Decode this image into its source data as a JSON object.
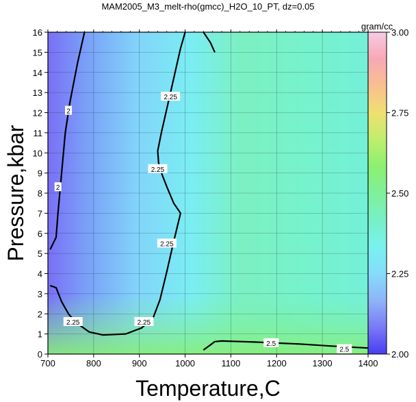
{
  "chart_data": {
    "type": "heatmap",
    "title": "MAM2005_M3_melt-rho(gmcc)_H2O_10_PT, dz=0.05",
    "xlabel": "Temperature,C",
    "ylabel": "Pressure,kbar",
    "xlim": [
      700,
      1400
    ],
    "ylim": [
      0,
      16
    ],
    "x_ticks": [
      700,
      800,
      900,
      1000,
      1100,
      1200,
      1300,
      1400
    ],
    "y_ticks": [
      0,
      1,
      2,
      3,
      4,
      5,
      6,
      7,
      8,
      9,
      10,
      11,
      12,
      13,
      14,
      15,
      16
    ],
    "grid": true,
    "colorbar": {
      "unit_label": "gram/cc",
      "min": 2.0,
      "max": 3.0,
      "ticks": [
        "2.00",
        "2.25",
        "2.50",
        "2.75",
        "3.00"
      ],
      "colors": [
        "#4a3cf0",
        "#7a7af6",
        "#8fb4f8",
        "#86dcfa",
        "#78f2ee",
        "#77f0c6",
        "#7ff09a",
        "#8df070",
        "#bfee6e",
        "#f0e070",
        "#f8c090",
        "#f8a8b4",
        "#f6cbe6"
      ]
    },
    "contour_lines": [
      {
        "level": "2",
        "points": [
          [
            705,
            5.2
          ],
          [
            718,
            5.8
          ],
          [
            722,
            7
          ],
          [
            728,
            8.5
          ],
          [
            738,
            11
          ],
          [
            748,
            12.5
          ],
          [
            765,
            14.5
          ],
          [
            780,
            16
          ]
        ]
      },
      {
        "level": "2.25",
        "points": [
          [
            705,
            3.4
          ],
          [
            718,
            3.3
          ],
          [
            730,
            2.6
          ],
          [
            745,
            2.0
          ],
          [
            760,
            1.6
          ],
          [
            790,
            1.1
          ],
          [
            820,
            0.95
          ],
          [
            870,
            1.0
          ],
          [
            905,
            1.3
          ],
          [
            930,
            1.8
          ],
          [
            945,
            2.7
          ],
          [
            960,
            4.1
          ],
          [
            975,
            5.6
          ],
          [
            990,
            7.0
          ],
          [
            975,
            7.5
          ],
          [
            962,
            8.2
          ],
          [
            950,
            8.9
          ],
          [
            942,
            9.5
          ],
          [
            940,
            10.1
          ],
          [
            948,
            11.0
          ],
          [
            958,
            12.0
          ],
          [
            968,
            13.0
          ],
          [
            980,
            14.2
          ],
          [
            990,
            15.2
          ],
          [
            1000,
            16
          ]
        ]
      },
      {
        "level": "2.25",
        "points": [
          [
            1040,
            16
          ],
          [
            1055,
            15.5
          ],
          [
            1065,
            15
          ]
        ]
      },
      {
        "level": "2.5",
        "points": [
          [
            1040,
            0.2
          ],
          [
            1055,
            0.45
          ],
          [
            1065,
            0.62
          ],
          [
            1080,
            0.65
          ],
          [
            1150,
            0.6
          ],
          [
            1250,
            0.5
          ],
          [
            1320,
            0.4
          ],
          [
            1400,
            0.3
          ]
        ]
      }
    ],
    "contour_labels": [
      {
        "text": "2",
        "x": 745,
        "y": 12.1
      },
      {
        "text": "2",
        "x": 722,
        "y": 8.3
      },
      {
        "text": "2.25",
        "x": 968,
        "y": 12.8
      },
      {
        "text": "2.25",
        "x": 940,
        "y": 9.2
      },
      {
        "text": "2.25",
        "x": 960,
        "y": 5.5
      },
      {
        "text": "2.25",
        "x": 755,
        "y": 1.6
      },
      {
        "text": "2.25",
        "x": 910,
        "y": 1.6
      },
      {
        "text": "2.5",
        "x": 1188,
        "y": 0.55
      },
      {
        "text": "2.5",
        "x": 1348,
        "y": 0.25
      }
    ]
  }
}
